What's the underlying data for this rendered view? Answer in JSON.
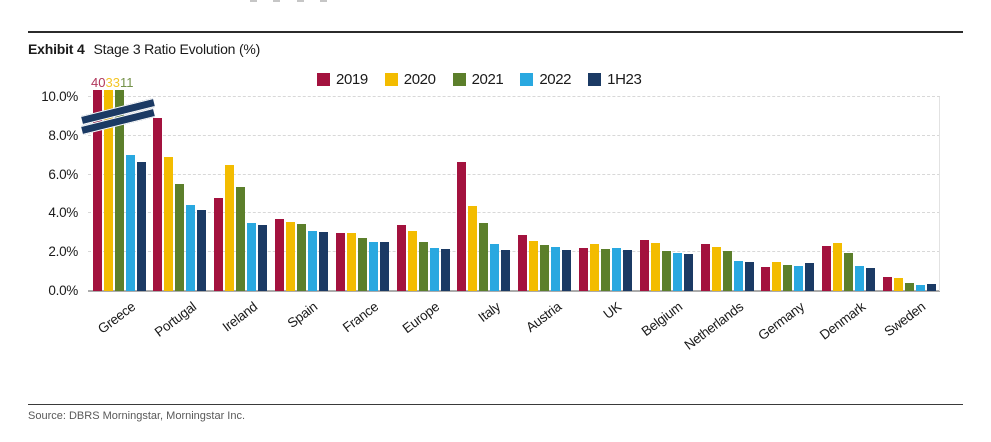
{
  "header": {
    "exhibit_label": "Exhibit 4",
    "title": "Stage 3 Ratio Evolution (%)"
  },
  "footer": {
    "source": "Source: DBRS Morningstar, Morningstar Inc."
  },
  "chart_data": {
    "type": "bar",
    "title": "Stage 3 Ratio Evolution (%)",
    "unit": "%",
    "categories": [
      "Greece",
      "Portugal",
      "Ireland",
      "Spain",
      "France",
      "Europe",
      "Italy",
      "Austria",
      "UK",
      "Belgium",
      "Netherlands",
      "Germany",
      "Denmark",
      "Sweden"
    ],
    "series": [
      {
        "name": "2019",
        "color": "#A3123E",
        "values": [
          40,
          8.9,
          4.8,
          3.7,
          3.0,
          3.4,
          6.65,
          2.9,
          2.2,
          2.65,
          2.45,
          1.25,
          2.3,
          0.7
        ]
      },
      {
        "name": "2020",
        "color": "#F3BC00",
        "values": [
          33,
          6.9,
          6.5,
          3.55,
          3.0,
          3.1,
          4.4,
          2.6,
          2.4,
          2.5,
          2.25,
          1.5,
          2.5,
          0.65
        ]
      },
      {
        "name": "2021",
        "color": "#5C7F2B",
        "values": [
          11,
          5.5,
          5.35,
          3.45,
          2.75,
          2.55,
          3.5,
          2.35,
          2.15,
          2.05,
          2.05,
          1.35,
          1.95,
          0.4
        ]
      },
      {
        "name": "2022",
        "color": "#29A8E0",
        "values": [
          7.0,
          4.45,
          3.5,
          3.1,
          2.55,
          2.2,
          2.4,
          2.25,
          2.2,
          1.95,
          1.55,
          1.3,
          1.3,
          0.3
        ]
      },
      {
        "name": "1H23",
        "color": "#1B3A64",
        "values": [
          6.65,
          4.2,
          3.4,
          3.05,
          2.55,
          2.15,
          2.1,
          2.1,
          2.1,
          1.9,
          1.5,
          1.45,
          1.2,
          0.35
        ]
      }
    ],
    "y_ticks": [
      {
        "value": 10,
        "label": "10.0%"
      },
      {
        "value": 8,
        "label": "8.0%"
      },
      {
        "value": 6,
        "label": "6.0%"
      },
      {
        "value": 4,
        "label": "4.0%"
      },
      {
        "value": 2,
        "label": "2.0%"
      },
      {
        "value": 0,
        "label": "0.0%"
      }
    ],
    "ylim": [
      0,
      10
    ],
    "grid": "horizontal-dashed",
    "legend_position": "top-center",
    "axis_break": {
      "category": "Greece",
      "truncated_series": [
        "2019",
        "2020",
        "2021"
      ],
      "true_value_labels": [
        "40",
        "33",
        "11"
      ],
      "display_cap": 10.35
    }
  }
}
